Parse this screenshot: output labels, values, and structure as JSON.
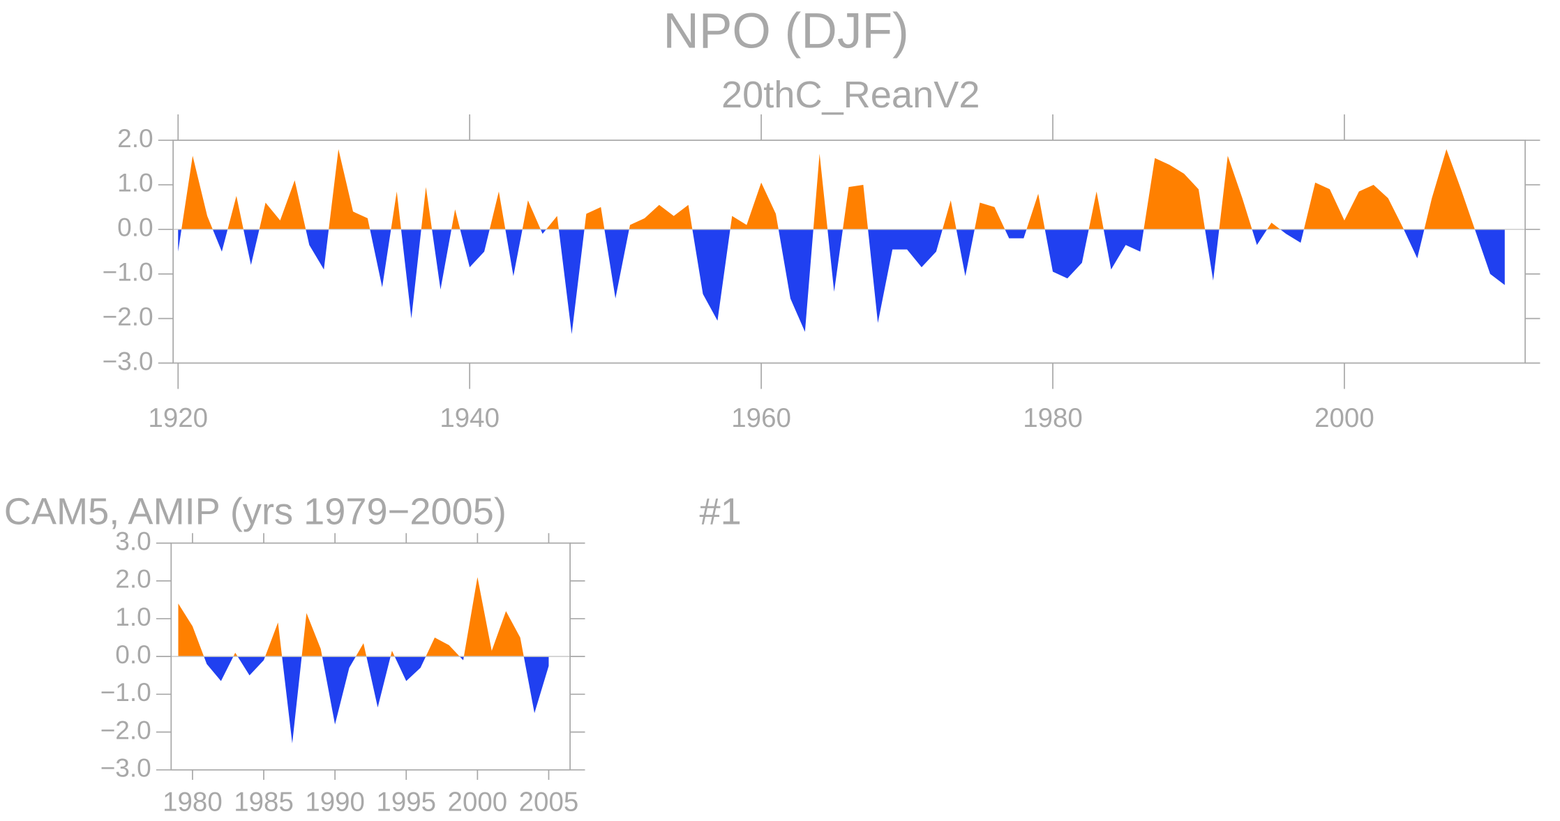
{
  "chart_data": [
    {
      "type": "area",
      "title": "NPO (DJF)",
      "subtitle": "20thC_ReanV2",
      "color_positive": "#ff8000",
      "color_negative": "#2040f0",
      "x": [
        1920,
        1921,
        1922,
        1923,
        1924,
        1925,
        1926,
        1927,
        1928,
        1929,
        1930,
        1931,
        1932,
        1933,
        1934,
        1935,
        1936,
        1937,
        1938,
        1939,
        1940,
        1941,
        1942,
        1943,
        1944,
        1945,
        1946,
        1947,
        1948,
        1949,
        1950,
        1951,
        1952,
        1953,
        1954,
        1955,
        1956,
        1957,
        1958,
        1959,
        1960,
        1961,
        1962,
        1963,
        1964,
        1965,
        1966,
        1967,
        1968,
        1969,
        1970,
        1971,
        1972,
        1973,
        1974,
        1975,
        1976,
        1977,
        1978,
        1979,
        1980,
        1981,
        1982,
        1983,
        1984,
        1985,
        1986,
        1987,
        1988,
        1989,
        1990,
        1991,
        1992,
        1993,
        1994,
        1995,
        1996,
        1997,
        1998,
        1999,
        2000,
        2001,
        2002,
        2003,
        2004,
        2005,
        2006,
        2007,
        2008,
        2009,
        2010,
        2011
      ],
      "values": [
        -0.5,
        1.65,
        0.3,
        -0.5,
        0.75,
        -0.8,
        0.6,
        0.2,
        1.1,
        -0.35,
        -0.9,
        1.8,
        0.4,
        0.25,
        -1.3,
        0.85,
        -2.0,
        0.95,
        -1.35,
        0.45,
        -0.85,
        -0.5,
        0.85,
        -1.05,
        0.65,
        -0.1,
        0.3,
        -2.35,
        0.35,
        0.5,
        -1.55,
        0.1,
        0.25,
        0.55,
        0.3,
        0.55,
        -1.45,
        -2.05,
        0.3,
        0.1,
        1.05,
        0.35,
        -1.55,
        -2.3,
        1.7,
        -1.4,
        0.95,
        1.0,
        -2.1,
        -0.45,
        -0.45,
        -0.85,
        -0.5,
        0.65,
        -1.05,
        0.6,
        0.5,
        -0.2,
        -0.2,
        0.8,
        -0.95,
        -1.1,
        -0.75,
        0.85,
        -0.9,
        -0.35,
        -0.5,
        1.6,
        1.45,
        1.25,
        0.9,
        -1.15,
        1.65,
        0.7,
        -0.35,
        0.15,
        -0.1,
        -0.3,
        1.05,
        0.9,
        0.2,
        0.85,
        1.0,
        0.7,
        0.05,
        -0.65,
        0.7,
        1.8,
        0.9,
        -0.05,
        -1.0,
        -1.25
      ],
      "xlim": [
        1919.66,
        2012.4
      ],
      "xticks": [
        1920,
        1940,
        1960,
        1980,
        2000
      ],
      "ylim": [
        -3,
        2
      ],
      "yticks": [
        {
          "value": 2,
          "label": "2.0"
        },
        {
          "value": 1,
          "label": "1.0"
        },
        {
          "value": 0,
          "label": "0.0"
        },
        {
          "value": -1,
          "label": "−1.0"
        },
        {
          "value": -2,
          "label": "−2.0"
        },
        {
          "value": -3,
          "label": "−3.0"
        }
      ]
    },
    {
      "type": "area",
      "title": "CAM5, AMIP (yrs 1979−2005)",
      "annotation": "#1",
      "color_positive": "#ff8000",
      "color_negative": "#2040f0",
      "x": [
        1979,
        1980,
        1981,
        1982,
        1983,
        1984,
        1985,
        1986,
        1987,
        1988,
        1989,
        1990,
        1991,
        1992,
        1993,
        1994,
        1995,
        1996,
        1997,
        1998,
        1999,
        2000,
        2001,
        2002,
        2003,
        2004,
        2005
      ],
      "values": [
        1.4,
        0.8,
        -0.2,
        -0.65,
        0.1,
        -0.5,
        -0.1,
        0.9,
        -2.3,
        1.15,
        0.2,
        -1.8,
        -0.3,
        0.35,
        -1.35,
        0.15,
        -0.65,
        -0.3,
        0.5,
        0.3,
        -0.1,
        2.1,
        0.15,
        1.2,
        0.5,
        -1.5,
        -0.25
      ],
      "xlim": [
        1978.5,
        2006.5
      ],
      "xticks": [
        1980,
        1985,
        1990,
        1995,
        2000,
        2005
      ],
      "ylim": [
        -3,
        3
      ],
      "yticks": [
        {
          "value": 3,
          "label": "3.0"
        },
        {
          "value": 2,
          "label": "2.0"
        },
        {
          "value": 1,
          "label": "1.0"
        },
        {
          "value": 0,
          "label": "0.0"
        },
        {
          "value": -1,
          "label": "−1.0"
        },
        {
          "value": -2,
          "label": "−2.0"
        },
        {
          "value": -3,
          "label": "−3.0"
        }
      ]
    }
  ]
}
